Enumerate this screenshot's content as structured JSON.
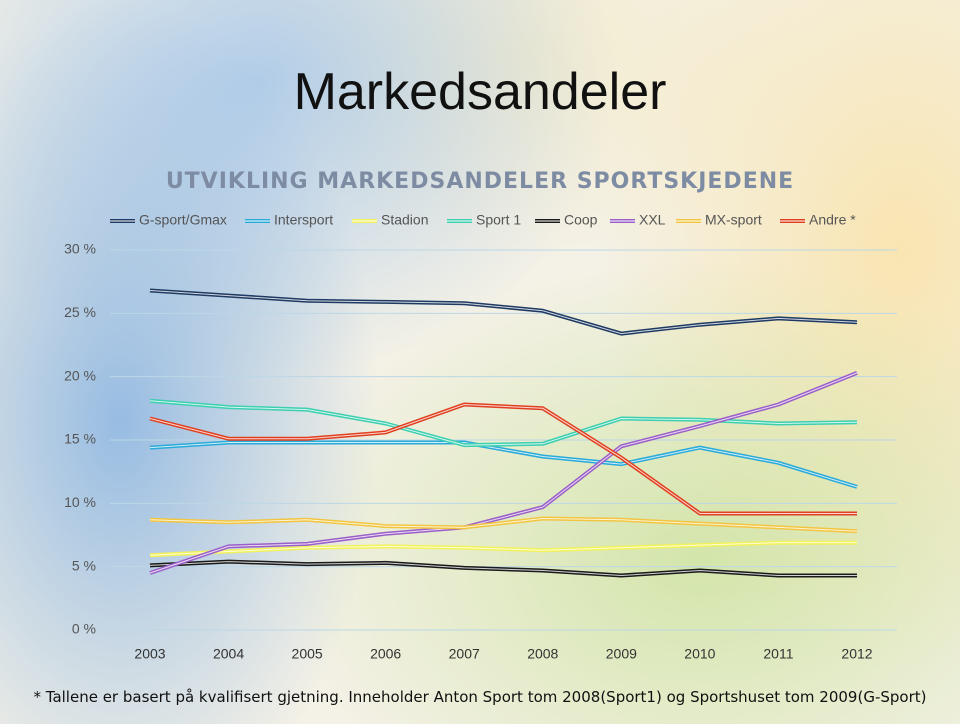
{
  "slide_title": "Markedsandeler",
  "footnote": "* Tallene er basert på kvalifisert gjetning. Inneholder Anton Sport tom 2008(Sport1) og Sportshuset tom 2009(G-Sport)",
  "chart_data": {
    "type": "line",
    "title": "UTVIKLING MARKEDSANDELER SPORTSKJEDENE",
    "categories": [
      "2003",
      "2004",
      "2005",
      "2006",
      "2007",
      "2008",
      "2009",
      "2010",
      "2011",
      "2012"
    ],
    "series": [
      {
        "name": "G-sport/Gmax",
        "color": "#1f3b63",
        "values": [
          26.8,
          26.4,
          26.0,
          25.9,
          25.8,
          25.2,
          23.4,
          24.1,
          24.6,
          24.3
        ]
      },
      {
        "name": "Intersport",
        "color": "#2aaad8",
        "values": [
          14.4,
          14.8,
          14.8,
          14.8,
          14.8,
          13.7,
          13.1,
          14.4,
          13.2,
          11.3
        ]
      },
      {
        "name": "Stadion",
        "color": "#f2f25a",
        "values": [
          5.9,
          6.2,
          6.5,
          6.6,
          6.5,
          6.3,
          6.5,
          6.7,
          6.9,
          6.9
        ]
      },
      {
        "name": "Sport 1",
        "color": "#3ccfb0",
        "values": [
          18.1,
          17.6,
          17.4,
          16.3,
          14.6,
          14.7,
          16.7,
          16.6,
          16.3,
          16.4
        ]
      },
      {
        "name": "Coop",
        "color": "#1a1a1a",
        "values": [
          5.1,
          5.4,
          5.2,
          5.3,
          4.9,
          4.7,
          4.3,
          4.7,
          4.3,
          4.3
        ]
      },
      {
        "name": "XXL",
        "color": "#9a5fc8",
        "values": [
          4.5,
          6.6,
          6.8,
          7.6,
          8.1,
          9.7,
          14.5,
          16.1,
          17.8,
          20.3
        ]
      },
      {
        "name": "MX-sport",
        "color": "#f2c540",
        "values": [
          8.7,
          8.5,
          8.7,
          8.2,
          8.1,
          8.8,
          8.7,
          8.4,
          8.1,
          7.8
        ]
      },
      {
        "name": "Andre *",
        "color": "#e0401f",
        "values": [
          16.7,
          15.1,
          15.1,
          15.6,
          17.8,
          17.5,
          13.6,
          9.2,
          9.2,
          9.2
        ]
      }
    ],
    "ylim": [
      0,
      30
    ],
    "yticks": [
      {
        "value": 0,
        "label": "0 %"
      },
      {
        "value": 5,
        "label": "5 %"
      },
      {
        "value": 10,
        "label": "10 %"
      },
      {
        "value": 15,
        "label": "15 %"
      },
      {
        "value": 20,
        "label": "20 %"
      },
      {
        "value": 25,
        "label": "25 %"
      },
      {
        "value": 30,
        "label": "30 %"
      }
    ],
    "grid": true,
    "legend": "top"
  }
}
